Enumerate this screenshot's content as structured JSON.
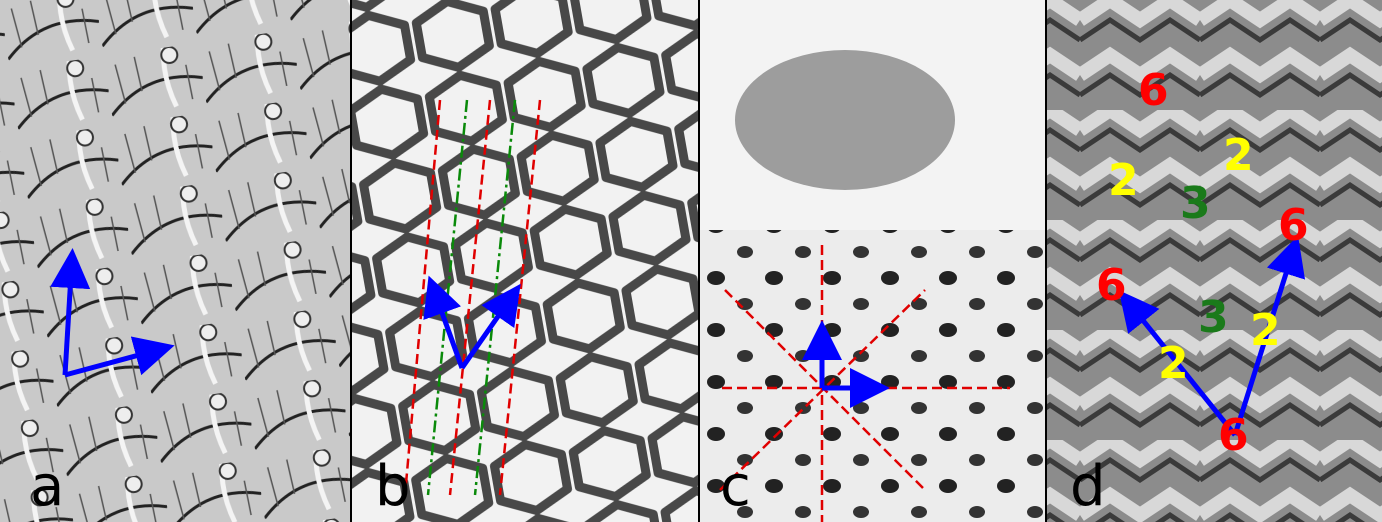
{
  "panels": [
    {
      "label": "a"
    },
    {
      "label": "b"
    },
    {
      "label": "c"
    },
    {
      "label": "d",
      "annotations": [
        {
          "text": "6",
          "color": "#ff0000"
        },
        {
          "text": "2",
          "color": "#ffff00"
        },
        {
          "text": "2",
          "color": "#ffff00"
        },
        {
          "text": "3",
          "color": "#1a7a1a"
        },
        {
          "text": "6",
          "color": "#ff0000"
        },
        {
          "text": "6",
          "color": "#ff0000"
        },
        {
          "text": "3",
          "color": "#1a7a1a"
        },
        {
          "text": "2",
          "color": "#ffff00"
        },
        {
          "text": "2",
          "color": "#ffff00"
        },
        {
          "text": "6",
          "color": "#ff0000"
        }
      ]
    }
  ]
}
